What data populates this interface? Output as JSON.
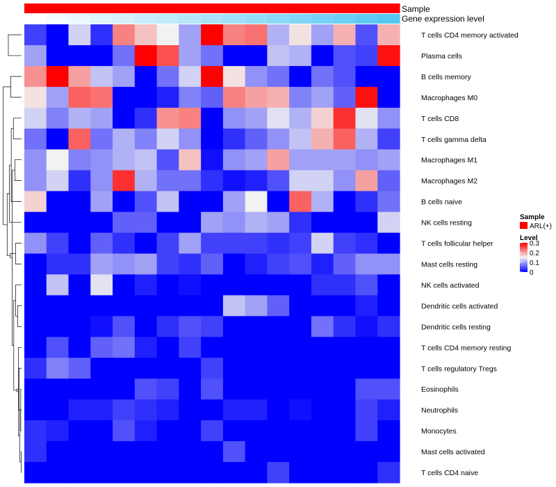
{
  "chart_data": {
    "type": "heatmap",
    "annotation_labels": {
      "sample": "Sample",
      "gene_expression": "Gene expression level"
    },
    "rows": [
      "T cells CD4 memory activated",
      "Plasma cells",
      "B cells memory",
      "Macrophages M0",
      "T cells CD8",
      "T cells gamma delta",
      "Macrophages M1",
      "Macrophages M2",
      "B cells naive",
      "NK cells resting",
      "T cells follicular helper",
      "Mast cells resting",
      "NK cells activated",
      "Dendritic cells activated",
      "Dendritic cells resting",
      "T cells CD4 memory resting",
      "T cells regulatory  Tregs",
      "Eosinophils",
      "Neutrophils",
      "Monocytes",
      "Mast cells activated",
      "T cells CD4 naive"
    ],
    "n_columns": 17,
    "values": [
      [
        0.04,
        0.0,
        0.13,
        0.03,
        0.22,
        0.18,
        0.15,
        0.1,
        0.3,
        0.22,
        0.23,
        0.11,
        0.16,
        0.1,
        0.19,
        0.05,
        0.19
      ],
      [
        0.1,
        0.0,
        0.0,
        0.0,
        0.07,
        0.3,
        0.25,
        0.1,
        0.07,
        0.0,
        0.0,
        0.12,
        0.11,
        0.0,
        0.05,
        0.04,
        0.29
      ],
      [
        0.21,
        0.3,
        0.2,
        0.12,
        0.1,
        0.0,
        0.07,
        0.13,
        0.3,
        0.16,
        0.09,
        0.07,
        0.0,
        0.07,
        0.05,
        0.0,
        0.0
      ],
      [
        0.16,
        0.1,
        0.24,
        0.23,
        0.0,
        0.0,
        0.02,
        0.08,
        0.06,
        0.22,
        0.2,
        0.19,
        0.08,
        0.1,
        0.06,
        0.29,
        0.0
      ],
      [
        0.13,
        0.08,
        0.11,
        0.1,
        0.0,
        0.03,
        0.21,
        0.22,
        0.0,
        0.09,
        0.1,
        0.14,
        0.11,
        0.17,
        0.27,
        0.14,
        0.09
      ],
      [
        0.07,
        0.0,
        0.24,
        0.07,
        0.11,
        0.08,
        0.13,
        0.09,
        0.0,
        0.03,
        0.06,
        0.09,
        0.12,
        0.19,
        0.24,
        0.11,
        0.04
      ],
      [
        0.09,
        0.15,
        0.08,
        0.09,
        0.11,
        0.12,
        0.05,
        0.18,
        0.01,
        0.09,
        0.1,
        0.2,
        0.1,
        0.1,
        0.1,
        0.09,
        0.1
      ],
      [
        0.09,
        0.13,
        0.03,
        0.09,
        0.27,
        0.11,
        0.07,
        0.07,
        0.03,
        0.01,
        0.02,
        0.05,
        0.13,
        0.13,
        0.09,
        0.2,
        0.06
      ],
      [
        0.17,
        0.0,
        0.0,
        0.1,
        0.0,
        0.05,
        0.12,
        0.0,
        0.0,
        0.1,
        0.15,
        0.0,
        0.24,
        0.11,
        0.0,
        0.03,
        0.07
      ],
      [
        0.0,
        0.0,
        0.0,
        0.0,
        0.06,
        0.06,
        0.0,
        0.0,
        0.1,
        0.09,
        0.11,
        0.1,
        0.03,
        0.0,
        0.0,
        0.0,
        0.13
      ],
      [
        0.09,
        0.04,
        0.0,
        0.06,
        0.03,
        0.0,
        0.04,
        0.1,
        0.04,
        0.04,
        0.04,
        0.03,
        0.04,
        0.13,
        0.04,
        0.03,
        0.0
      ],
      [
        0.0,
        0.03,
        0.03,
        0.1,
        0.09,
        0.1,
        0.04,
        0.03,
        0.06,
        0.0,
        0.02,
        0.04,
        0.05,
        0.02,
        0.06,
        0.09,
        0.09
      ],
      [
        0.0,
        0.12,
        0.0,
        0.14,
        0.0,
        0.02,
        0.0,
        0.01,
        0.0,
        0.0,
        0.0,
        0.0,
        0.0,
        0.03,
        0.03,
        0.05,
        0.0
      ],
      [
        0.0,
        0.0,
        0.0,
        0.0,
        0.0,
        0.0,
        0.0,
        0.0,
        0.0,
        0.12,
        0.1,
        0.06,
        0.0,
        0.0,
        0.0,
        0.02,
        0.0
      ],
      [
        0.0,
        0.0,
        0.0,
        0.01,
        0.05,
        0.0,
        0.03,
        0.05,
        0.04,
        0.0,
        0.0,
        0.0,
        0.0,
        0.07,
        0.03,
        0.01,
        0.03
      ],
      [
        0.0,
        0.05,
        0.0,
        0.06,
        0.07,
        0.02,
        0.0,
        0.04,
        0.0,
        0.0,
        0.0,
        0.0,
        0.0,
        0.0,
        0.0,
        0.0,
        0.0
      ],
      [
        0.03,
        0.08,
        0.06,
        0.0,
        0.0,
        0.0,
        0.0,
        0.0,
        0.04,
        0.0,
        0.0,
        0.0,
        0.0,
        0.0,
        0.0,
        0.0,
        0.0
      ],
      [
        0.0,
        0.0,
        0.0,
        0.0,
        0.0,
        0.05,
        0.04,
        0.0,
        0.05,
        0.0,
        0.0,
        0.0,
        0.0,
        0.0,
        0.0,
        0.05,
        0.05
      ],
      [
        0.0,
        0.0,
        0.02,
        0.02,
        0.04,
        0.03,
        0.02,
        0.0,
        0.0,
        0.02,
        0.02,
        0.0,
        0.01,
        0.0,
        0.0,
        0.04,
        0.02
      ],
      [
        0.03,
        0.02,
        0.0,
        0.0,
        0.05,
        0.02,
        0.0,
        0.0,
        0.04,
        0.0,
        0.0,
        0.0,
        0.0,
        0.0,
        0.0,
        0.04,
        0.0
      ],
      [
        0.03,
        0.0,
        0.0,
        0.0,
        0.0,
        0.0,
        0.0,
        0.0,
        0.0,
        0.05,
        0.0,
        0.0,
        0.0,
        0.0,
        0.0,
        0.0,
        0.0
      ],
      [
        0.0,
        0.0,
        0.0,
        0.0,
        0.0,
        0.0,
        0.0,
        0.0,
        0.0,
        0.0,
        0.0,
        0.04,
        0.0,
        0.0,
        0.0,
        0.0,
        0.03
      ]
    ],
    "expression_levels": [
      0.0,
      0.06,
      0.12,
      0.19,
      0.25,
      0.31,
      0.37,
      0.44,
      0.5,
      0.56,
      0.62,
      0.69,
      0.75,
      0.81,
      0.87,
      0.94,
      1.0
    ],
    "color_scale": {
      "min": 0,
      "mid": 0.15,
      "max": 0.3,
      "low_color": "#0000ff",
      "mid_color": "#f2f2f2",
      "high_color": "#ff0000"
    },
    "annotation_colors": {
      "sample": "#ff0000",
      "expression_low": "#ffffff",
      "expression_high": "#56c8f4"
    },
    "legend": {
      "sample_title": "Sample",
      "sample_entry": "ARL(+)",
      "level_title": "Level",
      "level_ticks": [
        "0.3",
        "0.2",
        "0.1",
        "0"
      ],
      "level_tick_values": [
        0.3,
        0.2,
        0.1,
        0
      ],
      "placement": "right"
    },
    "row_dendrogram": [
      [
        20,
        21,
        0.02
      ],
      [
        17,
        19,
        0.04
      ],
      [
        22,
        18,
        0.09
      ],
      [
        23,
        16,
        0.13
      ],
      [
        24,
        15,
        0.16
      ],
      [
        14,
        13,
        0.2
      ],
      [
        26,
        25,
        0.25
      ],
      [
        27,
        12,
        0.3
      ],
      [
        11,
        10,
        0.31
      ],
      [
        29,
        28,
        0.4
      ],
      [
        6,
        7,
        0.34
      ],
      [
        4,
        5,
        0.42
      ],
      [
        31,
        32,
        0.48
      ],
      [
        33,
        8,
        0.53
      ],
      [
        34,
        30,
        0.58
      ],
      [
        9,
        35,
        0.62
      ],
      [
        2,
        3,
        0.56
      ],
      [
        37,
        36,
        0.74
      ],
      [
        0,
        1,
        0.68
      ],
      [
        39,
        38,
        0.95
      ]
    ]
  }
}
